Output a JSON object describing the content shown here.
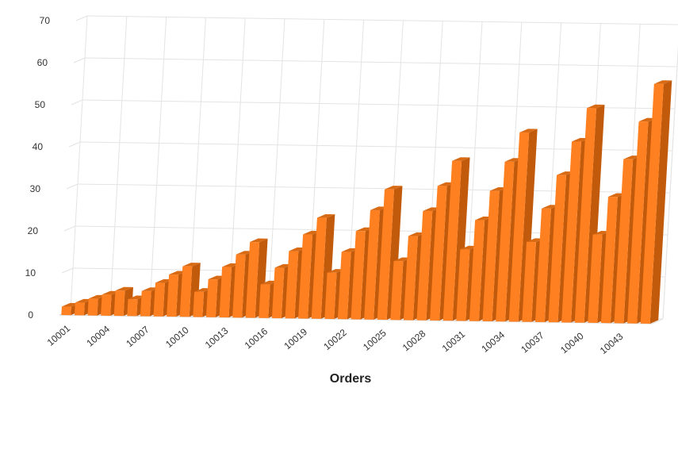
{
  "chart_data": {
    "type": "bar",
    "title": "",
    "xlabel": "Orders",
    "ylabel": "",
    "ylim": [
      0,
      70
    ],
    "yticks": [
      0,
      10,
      20,
      30,
      40,
      50,
      60,
      70
    ],
    "grid": true,
    "legend": "none",
    "categories": [
      "10001",
      "10002",
      "10003",
      "10004",
      "10005",
      "10006",
      "10007",
      "10008",
      "10009",
      "10010",
      "10011",
      "10012",
      "10013",
      "10014",
      "10015",
      "10016",
      "10017",
      "10018",
      "10019",
      "10020",
      "10021",
      "10022",
      "10023",
      "10024",
      "10025",
      "10026",
      "10027",
      "10028",
      "10029",
      "10030",
      "10031",
      "10032",
      "10033",
      "10034",
      "10035",
      "10036",
      "10037",
      "10038",
      "10039",
      "10040",
      "10041",
      "10042",
      "10043",
      "10044",
      "10045"
    ],
    "xtick_labels": [
      "10001",
      "10004",
      "10007",
      "10010",
      "10013",
      "10016",
      "10019",
      "10022",
      "10025",
      "10028",
      "10031",
      "10034",
      "10037",
      "10040",
      "10043"
    ],
    "series": [
      {
        "color": "#ff8021",
        "values": [
          2,
          3,
          4,
          5,
          6,
          4,
          6,
          8,
          10,
          12,
          6,
          9,
          12,
          15,
          18,
          8,
          12,
          16,
          20,
          24,
          11,
          16,
          21,
          26,
          31,
          14,
          20,
          26,
          32,
          38,
          17,
          24,
          31,
          38,
          45,
          19,
          27,
          35,
          43,
          51,
          21,
          30,
          39,
          48,
          57
        ]
      }
    ]
  }
}
